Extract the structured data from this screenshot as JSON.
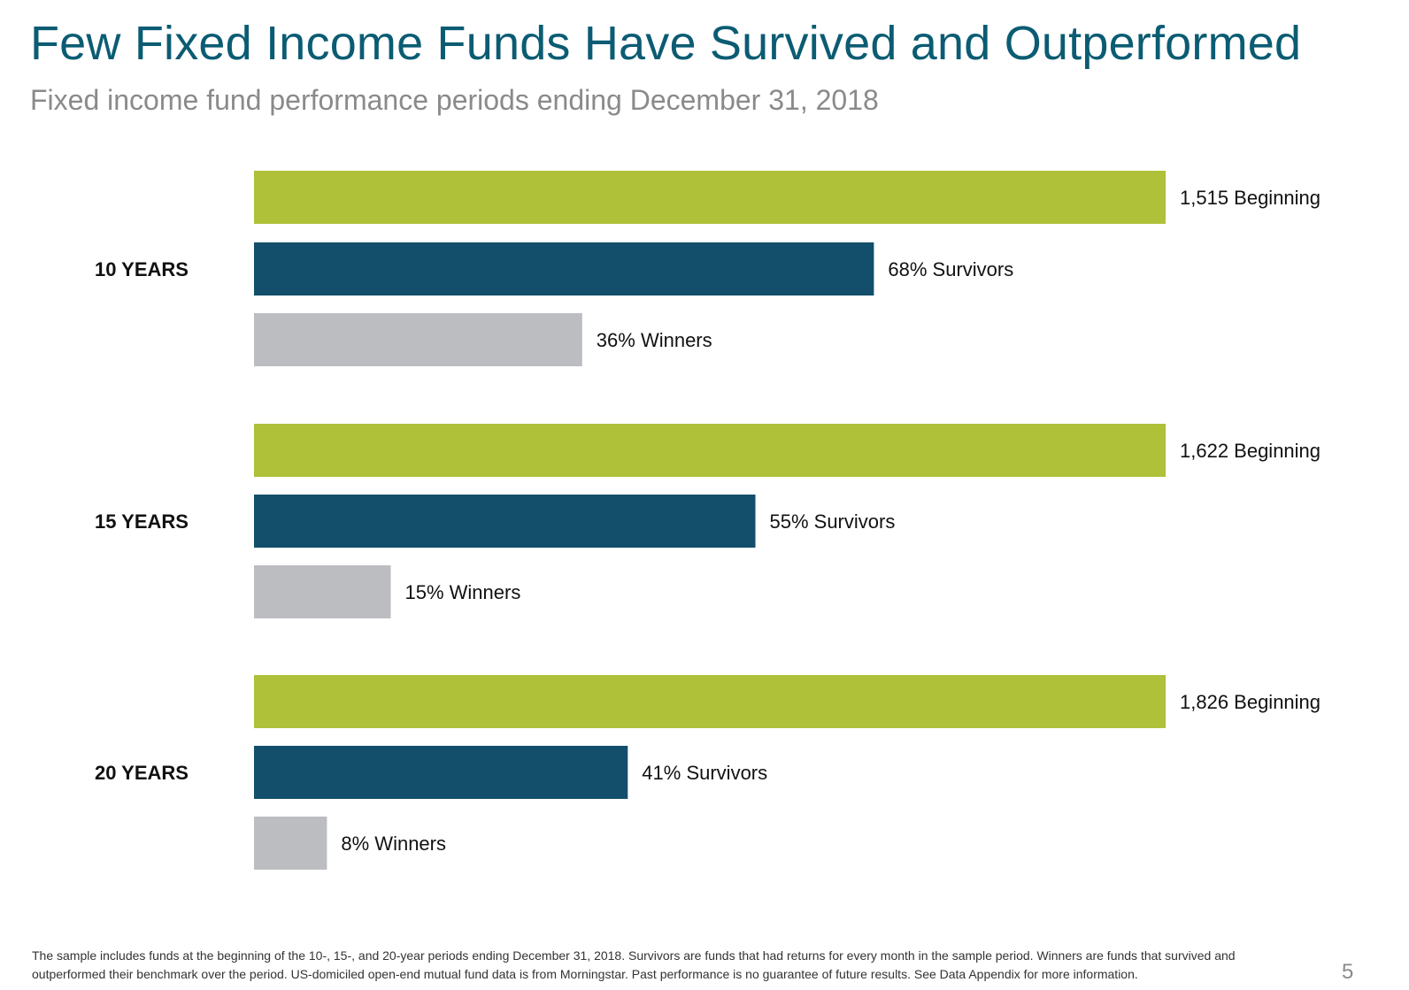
{
  "slide": {
    "title": "Few Fixed Income Funds Have Survived and Outperformed",
    "subtitle": "Fixed income fund performance periods ending December 31, 2018",
    "footnote": "The sample includes funds at the beginning of the 10-, 15-, and 20-year periods ending December 31, 2018. Survivors are funds that had returns for every month in the sample period. Winners are funds that survived and outperformed their benchmark over the period. US-domiciled open-end mutual fund data is from Morningstar. Past performance is no guarantee of future results. See Data Appendix for more information.",
    "page_number": "5"
  },
  "chart_data": {
    "type": "bar",
    "orientation": "horizontal",
    "value_scale": "percent of beginning funds",
    "colors": {
      "beginning": "#afc039",
      "survivors": "#134e6b",
      "winners": "#bcbdc0"
    },
    "groups": [
      {
        "label": "10 YEARS",
        "bars": [
          {
            "series": "Beginning",
            "value": 100,
            "label": "1,515 Beginning"
          },
          {
            "series": "Survivors",
            "value": 68,
            "label": "68% Survivors"
          },
          {
            "series": "Winners",
            "value": 36,
            "label": "36% Winners"
          }
        ]
      },
      {
        "label": "15 YEARS",
        "bars": [
          {
            "series": "Beginning",
            "value": 100,
            "label": "1,622 Beginning"
          },
          {
            "series": "Survivors",
            "value": 55,
            "label": "55% Survivors"
          },
          {
            "series": "Winners",
            "value": 15,
            "label": "15% Winners"
          }
        ]
      },
      {
        "label": "20 YEARS",
        "bars": [
          {
            "series": "Beginning",
            "value": 100,
            "label": "1,826 Beginning"
          },
          {
            "series": "Survivors",
            "value": 41,
            "label": "41% Survivors"
          },
          {
            "series": "Winners",
            "value": 8,
            "label": "8% Winners"
          }
        ]
      }
    ]
  }
}
